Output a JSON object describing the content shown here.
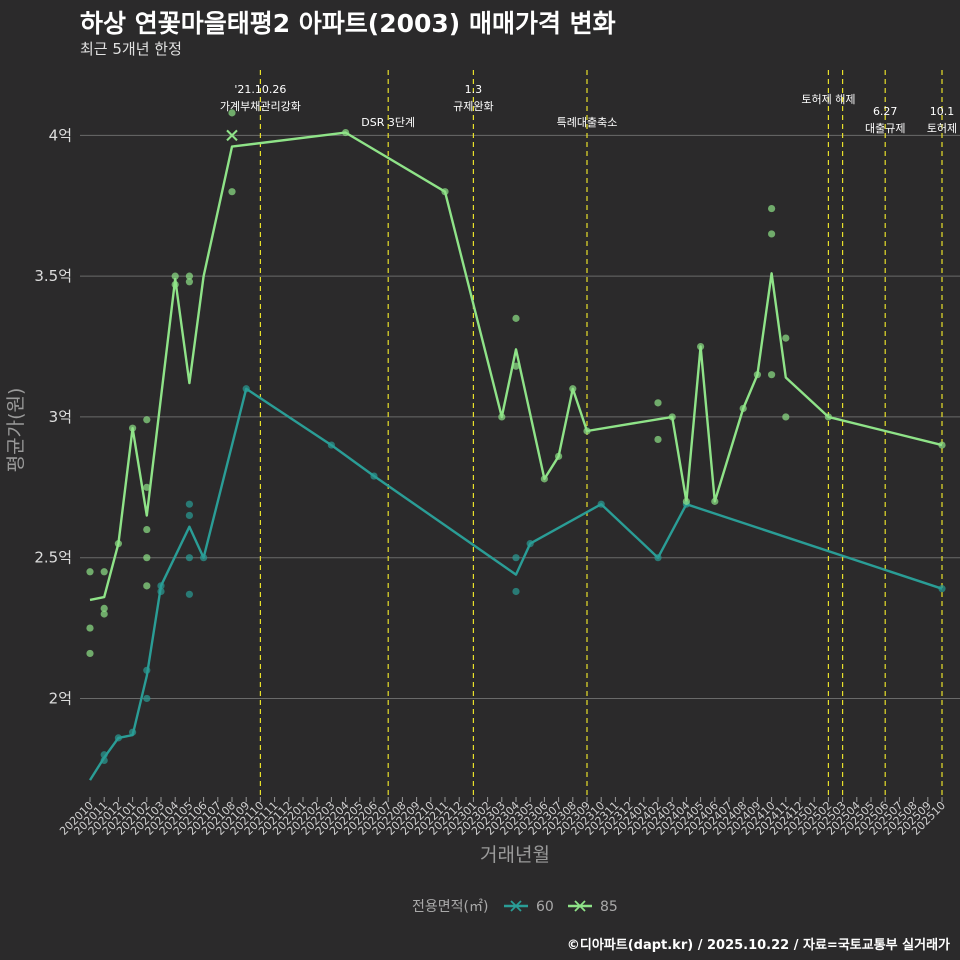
{
  "title": "하상 연꽃마을태평2 아파트(2003) 매매가격 변화",
  "subtitle": "최근 5개년 한정",
  "caption": "©디아파트(dapt.kr) / 2025.10.22 / 자료=국토교통부 실거래가",
  "chart_data": {
    "type": "line",
    "title": "하상 연꽃마을태평2 아파트(2003) 매매가격 변화",
    "xlabel": "거래년월",
    "ylabel": "평균가(원)",
    "ylim": [
      1.65,
      4.25
    ],
    "yticks": [
      {
        "value": 2.0,
        "label": "2억"
      },
      {
        "value": 2.5,
        "label": "2.5억"
      },
      {
        "value": 3.0,
        "label": "3억"
      },
      {
        "value": 3.5,
        "label": "3.5억"
      },
      {
        "value": 4.0,
        "label": "4억"
      }
    ],
    "months": [
      "202010",
      "202011",
      "202012",
      "202101",
      "202102",
      "202103",
      "202104",
      "202105",
      "202106",
      "202107",
      "202108",
      "202109",
      "202110",
      "202111",
      "202112",
      "202201",
      "202202",
      "202203",
      "202204",
      "202205",
      "202206",
      "202207",
      "202208",
      "202209",
      "202210",
      "202211",
      "202212",
      "202301",
      "202302",
      "202303",
      "202304",
      "202305",
      "202306",
      "202307",
      "202308",
      "202309",
      "202310",
      "202311",
      "202312",
      "202401",
      "202402",
      "202403",
      "202404",
      "202405",
      "202406",
      "202407",
      "202408",
      "202409",
      "202410",
      "202411",
      "202412",
      "202501",
      "202502",
      "202503",
      "202504",
      "202505",
      "202506",
      "202507",
      "202508",
      "202509",
      "202510"
    ],
    "legend_title": "전용면적(㎡)",
    "series": [
      {
        "name": "60",
        "color": "#2a9d96",
        "line": [
          [
            "202010",
            1.71
          ],
          [
            "202011",
            1.79
          ],
          [
            "202012",
            1.86
          ],
          [
            "202101",
            1.87
          ],
          [
            "202102",
            2.08
          ],
          [
            "202103",
            2.4
          ],
          [
            "202105",
            2.61
          ],
          [
            "202106",
            2.5
          ],
          [
            "202109",
            3.1
          ],
          [
            "202203",
            2.9
          ],
          [
            "202206",
            2.79
          ],
          [
            "202304",
            2.44
          ],
          [
            "202305",
            2.55
          ],
          [
            "202310",
            2.69
          ],
          [
            "202402",
            2.5
          ],
          [
            "202404",
            2.69
          ],
          [
            "202510",
            2.39
          ]
        ],
        "points": [
          [
            "202011",
            1.8
          ],
          [
            "202011",
            1.78
          ],
          [
            "202012",
            1.86
          ],
          [
            "202101",
            1.88
          ],
          [
            "202102",
            2.1
          ],
          [
            "202102",
            2.0
          ],
          [
            "202103",
            2.4
          ],
          [
            "202103",
            2.38
          ],
          [
            "202105",
            2.69
          ],
          [
            "202105",
            2.65
          ],
          [
            "202105",
            2.5
          ],
          [
            "202105",
            2.37
          ],
          [
            "202106",
            2.5
          ],
          [
            "202109",
            3.1
          ],
          [
            "202203",
            2.9
          ],
          [
            "202206",
            2.79
          ],
          [
            "202304",
            2.5
          ],
          [
            "202304",
            2.38
          ],
          [
            "202305",
            2.55
          ],
          [
            "202310",
            2.69
          ],
          [
            "202402",
            2.5
          ],
          [
            "202404",
            2.69
          ],
          [
            "202510",
            2.39
          ]
        ]
      },
      {
        "name": "85",
        "color": "#8fe388",
        "line": [
          [
            "202010",
            2.35
          ],
          [
            "202011",
            2.36
          ],
          [
            "202012",
            2.55
          ],
          [
            "202101",
            2.96
          ],
          [
            "202102",
            2.65
          ],
          [
            "202104",
            3.49
          ],
          [
            "202105",
            3.12
          ],
          [
            "202106",
            3.5
          ],
          [
            "202108",
            3.96
          ],
          [
            "202204",
            4.01
          ],
          [
            "202211",
            3.8
          ],
          [
            "202303",
            3.0
          ],
          [
            "202304",
            3.24
          ],
          [
            "202306",
            2.78
          ],
          [
            "202307",
            2.86
          ],
          [
            "202308",
            3.1
          ],
          [
            "202309",
            2.95
          ],
          [
            "202403",
            3.0
          ],
          [
            "202404",
            2.7
          ],
          [
            "202405",
            3.25
          ],
          [
            "202406",
            2.7
          ],
          [
            "202408",
            3.03
          ],
          [
            "202409",
            3.15
          ],
          [
            "202410",
            3.51
          ],
          [
            "202411",
            3.14
          ],
          [
            "202502",
            3.0
          ],
          [
            "202510",
            2.9
          ]
        ],
        "points": [
          [
            "202010",
            2.45
          ],
          [
            "202010",
            2.25
          ],
          [
            "202010",
            2.16
          ],
          [
            "202011",
            2.45
          ],
          [
            "202011",
            2.32
          ],
          [
            "202011",
            2.3
          ],
          [
            "202012",
            2.55
          ],
          [
            "202101",
            2.96
          ],
          [
            "202102",
            2.99
          ],
          [
            "202102",
            2.75
          ],
          [
            "202102",
            2.6
          ],
          [
            "202102",
            2.5
          ],
          [
            "202102",
            2.4
          ],
          [
            "202104",
            3.5
          ],
          [
            "202104",
            3.47
          ],
          [
            "202105",
            3.5
          ],
          [
            "202105",
            3.48
          ],
          [
            "202108",
            4.08
          ],
          [
            "202108",
            3.8
          ],
          [
            "202204",
            4.01
          ],
          [
            "202211",
            3.8
          ],
          [
            "202303",
            3.0
          ],
          [
            "202304",
            3.35
          ],
          [
            "202304",
            3.18
          ],
          [
            "202306",
            2.78
          ],
          [
            "202307",
            2.86
          ],
          [
            "202308",
            3.1
          ],
          [
            "202309",
            2.95
          ],
          [
            "202402",
            3.05
          ],
          [
            "202402",
            2.92
          ],
          [
            "202403",
            3.0
          ],
          [
            "202404",
            2.7
          ],
          [
            "202405",
            3.25
          ],
          [
            "202406",
            2.7
          ],
          [
            "202408",
            3.03
          ],
          [
            "202409",
            3.15
          ],
          [
            "202410",
            3.74
          ],
          [
            "202410",
            3.65
          ],
          [
            "202410",
            3.15
          ],
          [
            "202411",
            3.28
          ],
          [
            "202411",
            3.0
          ],
          [
            "202502",
            3.0
          ],
          [
            "202510",
            2.9
          ]
        ]
      }
    ],
    "highlight": {
      "series": "85",
      "month": "202108",
      "value": 4.0
    },
    "events": [
      {
        "month": "202110",
        "label": "'21.10.26\n가계부채관리강화"
      },
      {
        "month": "202207",
        "label": "DSR 3단계"
      },
      {
        "month": "202301",
        "label": "1.3\n규제완화"
      },
      {
        "month": "202309",
        "label": "특례대출축소"
      },
      {
        "month": "202502",
        "label": "토허제 해제"
      },
      {
        "month": "202503",
        "label": ""
      },
      {
        "month": "202506",
        "label": "6.27\n대출규제"
      },
      {
        "month": "202510",
        "label": "10.1\n토허제"
      }
    ],
    "grid": true,
    "legend_position": "bottom"
  }
}
